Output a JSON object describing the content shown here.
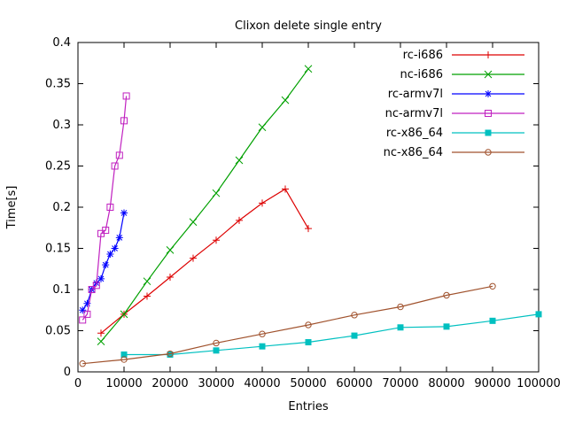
{
  "window": {
    "background": "#ffffff",
    "text_color": "#000000"
  },
  "chart_data": {
    "type": "line",
    "title": "Clixon delete single entry",
    "xlabel": "Entries",
    "ylabel": "Time[s]",
    "xlim": [
      0,
      100000
    ],
    "ylim": [
      0,
      0.4
    ],
    "grid": false,
    "legend_position": "top-right-inside",
    "xticks": [
      {
        "v": 0,
        "label": "0"
      },
      {
        "v": 10000,
        "label": "10000"
      },
      {
        "v": 20000,
        "label": "20000"
      },
      {
        "v": 30000,
        "label": "30000"
      },
      {
        "v": 40000,
        "label": "40000"
      },
      {
        "v": 50000,
        "label": "50000"
      },
      {
        "v": 60000,
        "label": "60000"
      },
      {
        "v": 70000,
        "label": "70000"
      },
      {
        "v": 80000,
        "label": "80000"
      },
      {
        "v": 90000,
        "label": "90000"
      },
      {
        "v": 100000,
        "label": "100000"
      }
    ],
    "yticks": [
      {
        "v": 0,
        "label": "0"
      },
      {
        "v": 0.05,
        "label": "0.05"
      },
      {
        "v": 0.1,
        "label": "0.1"
      },
      {
        "v": 0.15,
        "label": "0.15"
      },
      {
        "v": 0.2,
        "label": "0.2"
      },
      {
        "v": 0.25,
        "label": "0.25"
      },
      {
        "v": 0.3,
        "label": "0.3"
      },
      {
        "v": 0.35,
        "label": "0.35"
      },
      {
        "v": 0.4,
        "label": "0.4"
      }
    ],
    "series": [
      {
        "name": "rc-i686",
        "color": "#dd0000",
        "marker": "plus",
        "points": [
          [
            5000,
            0.047
          ],
          [
            10000,
            0.07
          ],
          [
            15000,
            0.092
          ],
          [
            20000,
            0.115
          ],
          [
            25000,
            0.138
          ],
          [
            30000,
            0.16
          ],
          [
            35000,
            0.184
          ],
          [
            40000,
            0.205
          ],
          [
            45000,
            0.222
          ],
          [
            50000,
            0.174
          ]
        ]
      },
      {
        "name": "nc-i686",
        "color": "#00a000",
        "marker": "cross",
        "points": [
          [
            5000,
            0.037
          ],
          [
            10000,
            0.07
          ],
          [
            15000,
            0.11
          ],
          [
            20000,
            0.148
          ],
          [
            25000,
            0.182
          ],
          [
            30000,
            0.217
          ],
          [
            35000,
            0.257
          ],
          [
            40000,
            0.297
          ],
          [
            45000,
            0.33
          ],
          [
            50000,
            0.368
          ]
        ]
      },
      {
        "name": "rc-armv7l",
        "color": "#0000ff",
        "marker": "asterisk",
        "points": [
          [
            1000,
            0.075
          ],
          [
            2000,
            0.083
          ],
          [
            3000,
            0.1
          ],
          [
            4000,
            0.108
          ],
          [
            5000,
            0.113
          ],
          [
            6000,
            0.13
          ],
          [
            7000,
            0.143
          ],
          [
            8000,
            0.15
          ],
          [
            9000,
            0.163
          ],
          [
            10000,
            0.193
          ]
        ]
      },
      {
        "name": "nc-armv7l",
        "color": "#c020c0",
        "marker": "square-open",
        "points": [
          [
            1000,
            0.063
          ],
          [
            2000,
            0.07
          ],
          [
            3000,
            0.1
          ],
          [
            4000,
            0.105
          ],
          [
            5000,
            0.168
          ],
          [
            6000,
            0.172
          ],
          [
            7000,
            0.2
          ],
          [
            8000,
            0.25
          ],
          [
            9000,
            0.263
          ],
          [
            10000,
            0.305
          ],
          [
            10500,
            0.335
          ]
        ]
      },
      {
        "name": "rc-x86_64",
        "color": "#00c0c0",
        "marker": "square-filled",
        "points": [
          [
            10000,
            0.021
          ],
          [
            20000,
            0.021
          ],
          [
            30000,
            0.026
          ],
          [
            40000,
            0.031
          ],
          [
            50000,
            0.036
          ],
          [
            60000,
            0.044
          ],
          [
            70000,
            0.054
          ],
          [
            80000,
            0.055
          ],
          [
            90000,
            0.062
          ],
          [
            100000,
            0.07
          ]
        ]
      },
      {
        "name": "nc-x86_64",
        "color": "#a0522d",
        "marker": "circle-open",
        "points": [
          [
            1000,
            0.01
          ],
          [
            10000,
            0.015
          ],
          [
            20000,
            0.022
          ],
          [
            30000,
            0.035
          ],
          [
            40000,
            0.046
          ],
          [
            50000,
            0.057
          ],
          [
            60000,
            0.069
          ],
          [
            70000,
            0.079
          ],
          [
            80000,
            0.093
          ],
          [
            90000,
            0.104
          ]
        ]
      }
    ]
  }
}
